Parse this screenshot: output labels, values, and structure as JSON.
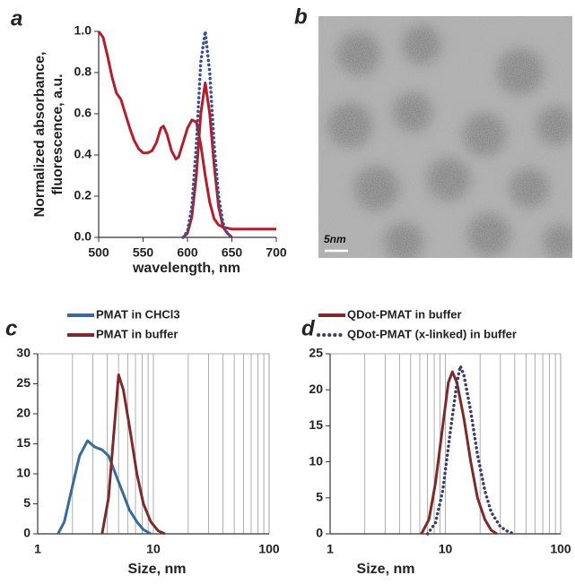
{
  "chart_data": [
    {
      "type": "line",
      "label": "a",
      "xlabel": "wavelength, nm",
      "ylabel": [
        "Normalized absorbance,",
        "fluorescence, a.u."
      ],
      "xlim": [
        500,
        700
      ],
      "xticks": [
        500,
        550,
        600,
        650,
        700
      ],
      "ylim": [
        0,
        1
      ],
      "yticks": [
        {
          "value": 0,
          "label": "0.0"
        },
        0.2,
        0.4,
        0.6,
        0.8,
        {
          "value": 1,
          "label": "1.0"
        }
      ],
      "grid": false,
      "log_x": false,
      "series": [
        {
          "color": "#b0202c",
          "dash": false,
          "x": [
            500,
            505,
            510,
            515,
            520,
            525,
            530,
            535,
            540,
            545,
            550,
            555,
            560,
            565,
            570,
            573,
            577,
            582,
            587,
            590,
            595,
            600,
            605,
            610,
            615,
            620,
            625,
            630,
            635,
            640,
            650,
            660,
            680,
            700
          ],
          "values": [
            1.0,
            0.97,
            0.88,
            0.78,
            0.7,
            0.67,
            0.6,
            0.53,
            0.47,
            0.43,
            0.41,
            0.41,
            0.42,
            0.46,
            0.53,
            0.54,
            0.5,
            0.42,
            0.38,
            0.39,
            0.46,
            0.53,
            0.57,
            0.56,
            0.45,
            0.3,
            0.17,
            0.09,
            0.06,
            0.05,
            0.04,
            0.04,
            0.04,
            0.04
          ]
        },
        {
          "color": "#b0202c",
          "dash": false,
          "x": [
            595,
            600,
            605,
            610,
            615,
            620,
            625,
            630,
            635,
            640,
            645,
            650
          ],
          "values": [
            0,
            0.02,
            0.1,
            0.3,
            0.6,
            0.75,
            0.6,
            0.35,
            0.15,
            0.05,
            0.02,
            0
          ]
        },
        {
          "color": "#3c4f8c",
          "dash": true,
          "x": [
            595,
            600,
            605,
            610,
            615,
            620,
            625,
            630,
            635,
            640,
            645,
            650
          ],
          "values": [
            0,
            0.03,
            0.15,
            0.45,
            0.85,
            1.0,
            0.8,
            0.45,
            0.2,
            0.07,
            0.02,
            0
          ]
        }
      ]
    },
    {
      "type": "line",
      "label": "c",
      "xlabel": "Size, nm",
      "legend": "top",
      "xlim": [
        1,
        100
      ],
      "xticks": [
        1,
        10,
        100
      ],
      "log_x": true,
      "grid": true,
      "x_minor_grid": [
        2,
        3,
        4,
        5,
        6,
        7,
        8,
        9,
        20,
        30,
        40,
        50,
        60,
        70,
        80,
        90
      ],
      "ylim": [
        0,
        30
      ],
      "yticks": [
        0,
        5,
        10,
        15,
        20,
        25,
        30
      ],
      "series": [
        {
          "name": "PMAT in CHCl3",
          "color": "#3a6a9a",
          "dash": false,
          "x": [
            1.5,
            1.7,
            2.0,
            2.3,
            2.7,
            3.1,
            3.6,
            4.1,
            4.7,
            5.4,
            6.2,
            7.2,
            8.2,
            9.5
          ],
          "values": [
            0,
            2,
            8,
            13,
            15.5,
            14.5,
            14,
            13,
            10,
            7,
            4,
            2,
            0.7,
            0
          ]
        },
        {
          "name": "PMAT in buffer",
          "color": "#7b2b2b",
          "dash": false,
          "x": [
            3.6,
            4.1,
            4.7,
            5.0,
            5.5,
            6.2,
            7.2,
            8.2,
            9.5,
            11,
            12.6
          ],
          "values": [
            0,
            6,
            20,
            26.5,
            24,
            18,
            10,
            5,
            2,
            0.5,
            0
          ]
        }
      ]
    },
    {
      "type": "line",
      "label": "d",
      "xlabel": "Size, nm",
      "legend": "top",
      "xlim": [
        1,
        100
      ],
      "xticks": [
        1,
        10,
        100
      ],
      "log_x": true,
      "grid": true,
      "x_minor_grid": [
        2,
        3,
        4,
        5,
        6,
        7,
        8,
        9,
        20,
        30,
        40,
        50,
        60,
        70,
        80,
        90
      ],
      "ylim": [
        0,
        25
      ],
      "yticks": [
        0,
        5,
        10,
        15,
        20,
        25
      ],
      "series": [
        {
          "name": "QDot-PMAT in buffer",
          "color": "#7b2b2b",
          "dash": false,
          "x": [
            6.2,
            7.2,
            8.2,
            9.5,
            10.6,
            11.5,
            12.6,
            14.5,
            16.6,
            19,
            22,
            25,
            28
          ],
          "values": [
            0,
            2,
            7,
            15,
            21,
            22.5,
            21,
            16,
            10,
            5,
            2,
            0.5,
            0
          ]
        },
        {
          "name": "QDot-PMAT (x-linked) in buffer",
          "color": "#3c3c6a",
          "dash": true,
          "x": [
            7,
            8.2,
            9.5,
            11,
            12.6,
            13.5,
            14.5,
            16.6,
            19,
            22,
            25,
            30,
            35,
            40
          ],
          "values": [
            0,
            1.5,
            6,
            14,
            21,
            23.3,
            22,
            17,
            11,
            6,
            3,
            1,
            0.3,
            0
          ]
        }
      ]
    }
  ],
  "image": {
    "label": "b",
    "scale_bar": "5nm"
  }
}
